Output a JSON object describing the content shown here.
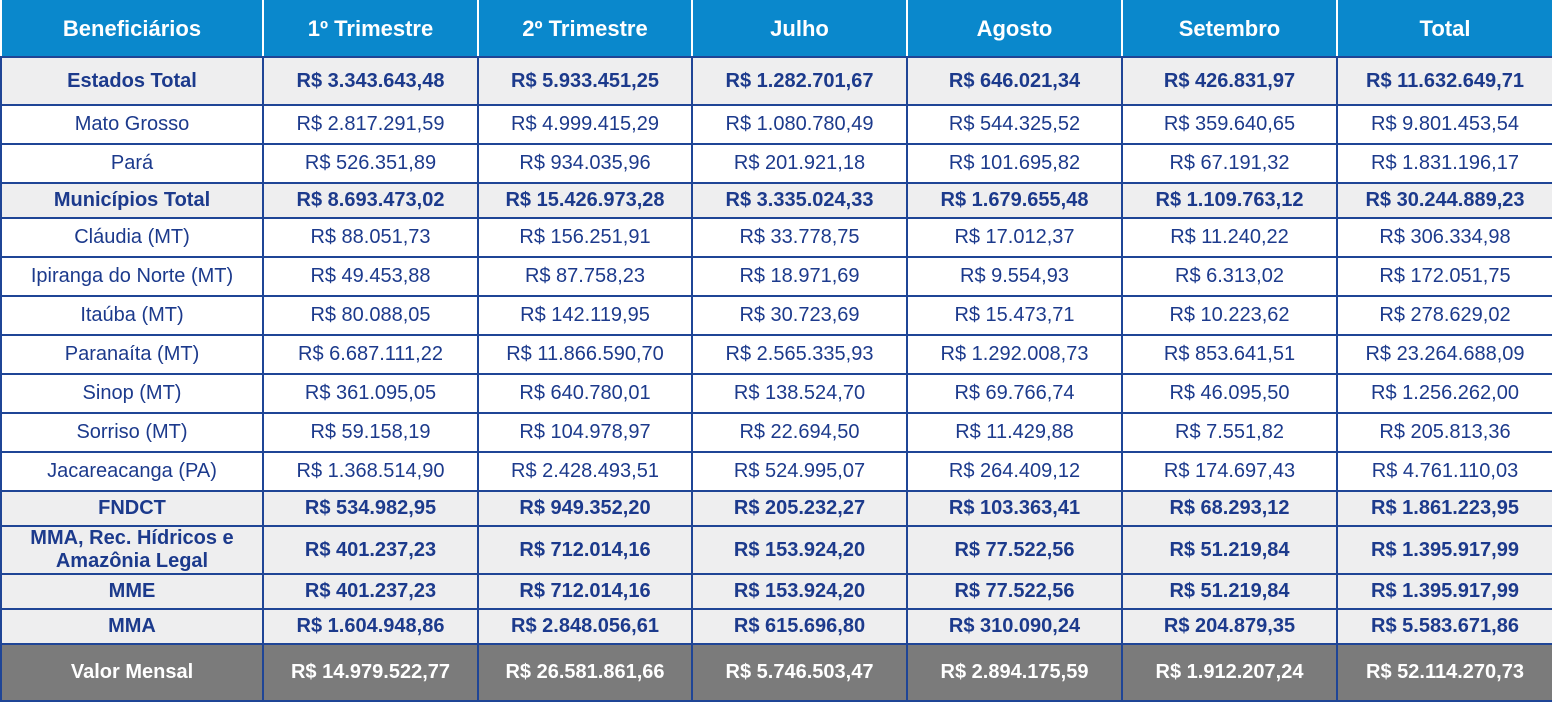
{
  "table": {
    "header": [
      "Beneficiários",
      "1º Trimestre",
      "2º Trimestre",
      "Julho",
      "Agosto",
      "Setembro",
      "Total"
    ],
    "rows": [
      [
        "Estados Total",
        "R$ 3.343.643,48",
        "R$ 5.933.451,25",
        "R$ 1.282.701,67",
        "R$ 646.021,34",
        "R$ 426.831,97",
        "R$ 11.632.649,71"
      ],
      [
        "Mato Grosso",
        "R$ 2.817.291,59",
        "R$ 4.999.415,29",
        "R$ 1.080.780,49",
        "R$ 544.325,52",
        "R$ 359.640,65",
        "R$ 9.801.453,54"
      ],
      [
        "Pará",
        "R$ 526.351,89",
        "R$ 934.035,96",
        "R$ 201.921,18",
        "R$ 101.695,82",
        "R$ 67.191,32",
        "R$ 1.831.196,17"
      ],
      [
        "Municípios Total",
        "R$ 8.693.473,02",
        "R$ 15.426.973,28",
        "R$ 3.335.024,33",
        "R$ 1.679.655,48",
        "R$ 1.109.763,12",
        "R$ 30.244.889,23"
      ],
      [
        "Cláudia (MT)",
        "R$ 88.051,73",
        "R$ 156.251,91",
        "R$ 33.778,75",
        "R$ 17.012,37",
        "R$ 11.240,22",
        "R$ 306.334,98"
      ],
      [
        "Ipiranga do Norte (MT)",
        "R$ 49.453,88",
        "R$ 87.758,23",
        "R$ 18.971,69",
        "R$ 9.554,93",
        "R$ 6.313,02",
        "R$ 172.051,75"
      ],
      [
        "Itaúba (MT)",
        "R$ 80.088,05",
        "R$ 142.119,95",
        "R$ 30.723,69",
        "R$ 15.473,71",
        "R$ 10.223,62",
        "R$ 278.629,02"
      ],
      [
        "Paranaíta (MT)",
        "R$ 6.687.111,22",
        "R$ 11.866.590,70",
        "R$ 2.565.335,93",
        "R$ 1.292.008,73",
        "R$ 853.641,51",
        "R$ 23.264.688,09"
      ],
      [
        "Sinop (MT)",
        "R$ 361.095,05",
        "R$ 640.780,01",
        "R$ 138.524,70",
        "R$ 69.766,74",
        "R$ 46.095,50",
        "R$ 1.256.262,00"
      ],
      [
        "Sorriso (MT)",
        "R$ 59.158,19",
        "R$ 104.978,97",
        "R$ 22.694,50",
        "R$ 11.429,88",
        "R$ 7.551,82",
        "R$ 205.813,36"
      ],
      [
        "Jacareacanga (PA)",
        "R$ 1.368.514,90",
        "R$ 2.428.493,51",
        "R$ 524.995,07",
        "R$ 264.409,12",
        "R$ 174.697,43",
        "R$ 4.761.110,03"
      ],
      [
        "FNDCT",
        "R$ 534.982,95",
        "R$ 949.352,20",
        "R$ 205.232,27",
        "R$ 103.363,41",
        "R$ 68.293,12",
        "R$ 1.861.223,95"
      ],
      [
        "MMA, Rec. Hídricos e Amazônia Legal",
        "R$ 401.237,23",
        "R$ 712.014,16",
        "R$ 153.924,20",
        "R$ 77.522,56",
        "R$ 51.219,84",
        "R$ 1.395.917,99"
      ],
      [
        "MME",
        "R$ 401.237,23",
        "R$ 712.014,16",
        "R$ 153.924,20",
        "R$ 77.522,56",
        "R$ 51.219,84",
        "R$ 1.395.917,99"
      ],
      [
        "MMA",
        "R$ 1.604.948,86",
        "R$ 2.848.056,61",
        "R$ 615.696,80",
        "R$ 310.090,24",
        "R$ 204.879,35",
        "R$ 5.583.671,86"
      ]
    ],
    "footer": [
      "Valor Mensal",
      "R$ 14.979.522,77",
      "R$ 26.581.861,66",
      "R$ 5.746.503,47",
      "R$ 2.894.175,59",
      "R$ 1.912.207,24",
      "R$ 52.114.270,73"
    ]
  }
}
